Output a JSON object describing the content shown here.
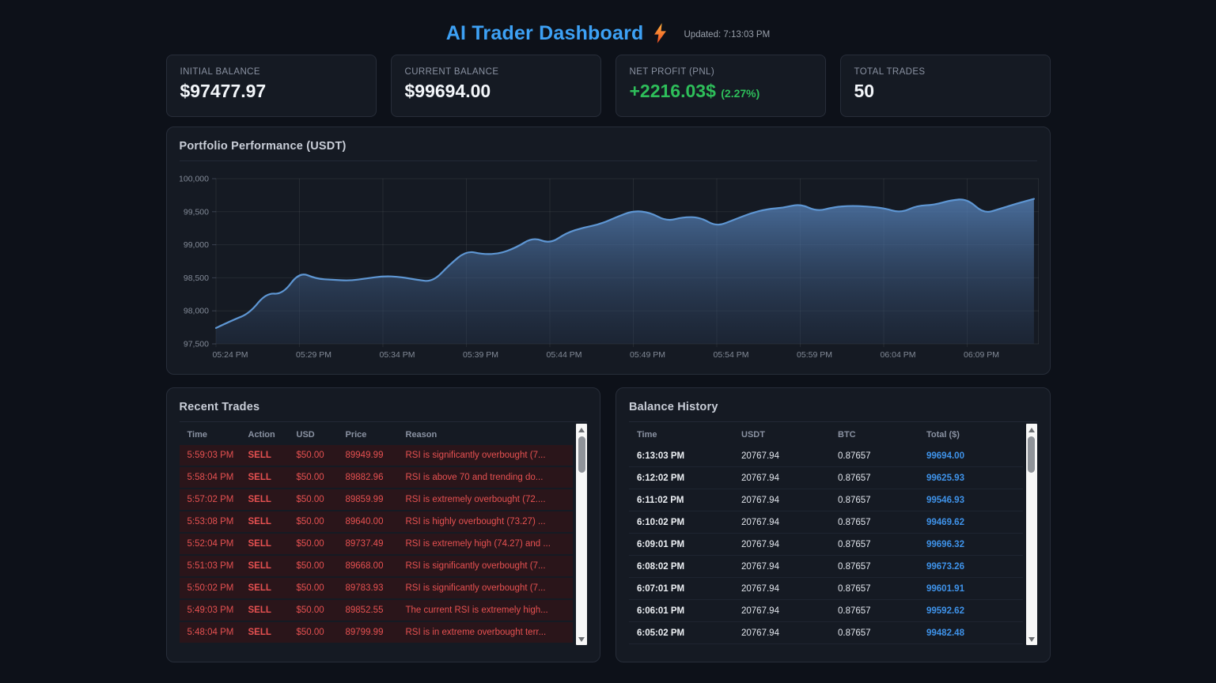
{
  "header": {
    "title": "AI Trader Dashboard",
    "bolt_icon": "lightning-bolt",
    "updated": "Updated: 7:13:03 PM"
  },
  "stats": [
    {
      "label": "INITIAL BALANCE",
      "value": "$97477.97"
    },
    {
      "label": "CURRENT BALANCE",
      "value": "$99694.00"
    },
    {
      "label": "NET PROFIT (PNL)",
      "value": "+2216.03$",
      "percent": "(2.27%)",
      "color": "#2ebe5a"
    },
    {
      "label": "TOTAL TRADES",
      "value": "50"
    }
  ],
  "chart_data": {
    "type": "area",
    "title": "Portfolio Performance (USDT)",
    "xlabel": "",
    "ylabel": "",
    "ylim": [
      97500,
      100000
    ],
    "y_ticks": [
      97500,
      98000,
      98500,
      99000,
      99500,
      100000
    ],
    "y_tick_labels": [
      "97,500",
      "98,000",
      "98,500",
      "99,000",
      "99,500",
      "100,000"
    ],
    "x_tick_labels": [
      "05:24 PM",
      "05:29 PM",
      "05:34 PM",
      "05:39 PM",
      "05:44 PM",
      "05:49 PM",
      "05:54 PM",
      "05:59 PM",
      "06:04 PM",
      "06:09 PM"
    ],
    "x_tick_interval_minutes": 5,
    "grid": true,
    "legend": false,
    "line_color": "#5e96d3",
    "fill_top_color": "rgba(86,130,185,0.8)",
    "fill_bottom_color": "rgba(40,56,82,0.35)",
    "times": [
      "5:24 PM",
      "5:25 PM",
      "5:26 PM",
      "5:27 PM",
      "5:28 PM",
      "5:29 PM",
      "5:30 PM",
      "5:31 PM",
      "5:32 PM",
      "5:33 PM",
      "5:34 PM",
      "5:35 PM",
      "5:36 PM",
      "5:37 PM",
      "5:38 PM",
      "5:39 PM",
      "5:40 PM",
      "5:41 PM",
      "5:42 PM",
      "5:43 PM",
      "5:44 PM",
      "5:45 PM",
      "5:46 PM",
      "5:47 PM",
      "5:48 PM",
      "5:49 PM",
      "5:50 PM",
      "5:51 PM",
      "5:52 PM",
      "5:53 PM",
      "5:54 PM",
      "5:55 PM",
      "5:56 PM",
      "5:57 PM",
      "5:58 PM",
      "5:59 PM",
      "6:00 PM",
      "6:01 PM",
      "6:02 PM",
      "6:03 PM",
      "6:04 PM",
      "6:05 PM",
      "6:06 PM",
      "6:07 PM",
      "6:08 PM",
      "6:09 PM",
      "6:10 PM",
      "6:11 PM",
      "6:12 PM",
      "6:13 PM"
    ],
    "values": [
      97740,
      97860,
      97960,
      98270,
      98250,
      98590,
      98485,
      98470,
      98455,
      98490,
      98525,
      98515,
      98470,
      98440,
      98700,
      98910,
      98855,
      98865,
      98960,
      99115,
      99015,
      99180,
      99260,
      99310,
      99420,
      99515,
      99490,
      99355,
      99420,
      99415,
      99275,
      99375,
      99475,
      99540,
      99560,
      99620,
      99505,
      99570,
      99590,
      99580,
      99555,
      99482.48,
      99592.62,
      99601.91,
      99673.26,
      99696.32,
      99469.62,
      99546.93,
      99625.93,
      99694.0
    ]
  },
  "recent_trades": {
    "title": "Recent Trades",
    "columns": [
      "Time",
      "Action",
      "USD",
      "Price",
      "Reason"
    ],
    "rows": [
      [
        "5:59:03 PM",
        "SELL",
        "$50.00",
        "89949.99",
        "RSI is significantly overbought (7..."
      ],
      [
        "5:58:04 PM",
        "SELL",
        "$50.00",
        "89882.96",
        "RSI is above 70 and trending do..."
      ],
      [
        "5:57:02 PM",
        "SELL",
        "$50.00",
        "89859.99",
        "RSI is extremely overbought (72...."
      ],
      [
        "5:53:08 PM",
        "SELL",
        "$50.00",
        "89640.00",
        "RSI is highly overbought (73.27) ..."
      ],
      [
        "5:52:04 PM",
        "SELL",
        "$50.00",
        "89737.49",
        "RSI is extremely high (74.27) and ..."
      ],
      [
        "5:51:03 PM",
        "SELL",
        "$50.00",
        "89668.00",
        "RSI is significantly overbought (7..."
      ],
      [
        "5:50:02 PM",
        "SELL",
        "$50.00",
        "89783.93",
        "RSI is significantly overbought (7..."
      ],
      [
        "5:49:03 PM",
        "SELL",
        "$50.00",
        "89852.55",
        "The current RSI is extremely high..."
      ],
      [
        "5:48:04 PM",
        "SELL",
        "$50.00",
        "89799.99",
        "RSI is in extreme overbought terr..."
      ]
    ]
  },
  "balance_history": {
    "title": "Balance History",
    "columns": [
      "Time",
      "USDT",
      "BTC",
      "Total ($)"
    ],
    "rows": [
      [
        "6:13:03 PM",
        "20767.94",
        "0.87657",
        "99694.00"
      ],
      [
        "6:12:02 PM",
        "20767.94",
        "0.87657",
        "99625.93"
      ],
      [
        "6:11:02 PM",
        "20767.94",
        "0.87657",
        "99546.93"
      ],
      [
        "6:10:02 PM",
        "20767.94",
        "0.87657",
        "99469.62"
      ],
      [
        "6:09:01 PM",
        "20767.94",
        "0.87657",
        "99696.32"
      ],
      [
        "6:08:02 PM",
        "20767.94",
        "0.87657",
        "99673.26"
      ],
      [
        "6:07:01 PM",
        "20767.94",
        "0.87657",
        "99601.91"
      ],
      [
        "6:06:01 PM",
        "20767.94",
        "0.87657",
        "99592.62"
      ],
      [
        "6:05:02 PM",
        "20767.94",
        "0.87657",
        "99482.48"
      ]
    ]
  }
}
